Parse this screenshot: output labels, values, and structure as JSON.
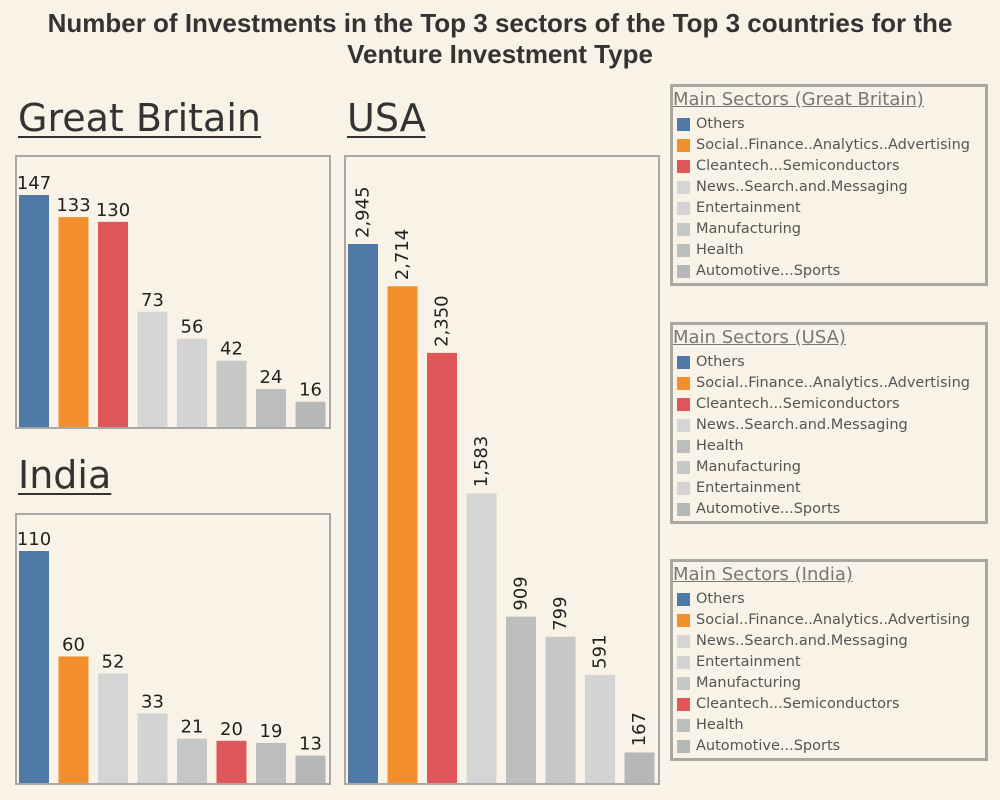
{
  "title_line1": "Number of Investments in the Top 3 sectors of the Top 3 countries for the",
  "title_line2": "Venture Investment Type",
  "colors": {
    "Others": "#4e79a7",
    "Social..Finance..Analytics..Advertising": "#f28e2b",
    "Cleantech...Semiconductors": "#e15759",
    "News..Search.and.Messaging": "#d5d5d5",
    "Entertainment": "#d3d3d3",
    "Manufacturing": "#c6c7c7",
    "Health": "#bcbdbd",
    "Automotive...Sports": "#b6b8b8"
  },
  "chart_data": [
    {
      "type": "bar",
      "title": "Great Britain",
      "categories": [
        "Others",
        "Social..Finance..Analytics..Advertising",
        "Cleantech...Semiconductors",
        "News..Search.and.Messaging",
        "Entertainment",
        "Manufacturing",
        "Health",
        "Automotive...Sports"
      ],
      "values": [
        147,
        133,
        130,
        73,
        56,
        42,
        24,
        16
      ],
      "value_labels": [
        "147",
        "133",
        "130",
        "73",
        "56",
        "42",
        "24",
        "16"
      ],
      "ylim": [
        0,
        147
      ],
      "label_orientation": "horizontal"
    },
    {
      "type": "bar",
      "title": "India",
      "categories": [
        "Others",
        "Social..Finance..Analytics..Advertising",
        "News..Search.and.Messaging",
        "Entertainment",
        "Manufacturing",
        "Cleantech...Semiconductors",
        "Health",
        "Automotive...Sports"
      ],
      "values": [
        110,
        60,
        52,
        33,
        21,
        20,
        19,
        13
      ],
      "value_labels": [
        "110",
        "60",
        "52",
        "33",
        "21",
        "20",
        "19",
        "13"
      ],
      "ylim": [
        0,
        110
      ],
      "label_orientation": "horizontal"
    },
    {
      "type": "bar",
      "title": "USA",
      "categories": [
        "Others",
        "Social..Finance..Analytics..Advertising",
        "Cleantech...Semiconductors",
        "News..Search.and.Messaging",
        "Health",
        "Manufacturing",
        "Entertainment",
        "Automotive...Sports"
      ],
      "values": [
        2945,
        2714,
        2350,
        1583,
        909,
        799,
        591,
        167
      ],
      "value_labels": [
        "2,945",
        "2,714",
        "2,350",
        "1,583",
        "909",
        "799",
        "591",
        "167"
      ],
      "ylim": [
        0,
        2945
      ],
      "label_orientation": "vertical"
    }
  ],
  "legends": [
    {
      "title": "Main Sectors (Great Britain)",
      "items": [
        "Others",
        "Social..Finance..Analytics..Advertising",
        "Cleantech...Semiconductors",
        "News..Search.and.Messaging",
        "Entertainment",
        "Manufacturing",
        "Health",
        "Automotive...Sports"
      ]
    },
    {
      "title": "Main Sectors (USA)",
      "items": [
        "Others",
        "Social..Finance..Analytics..Advertising",
        "Cleantech...Semiconductors",
        "News..Search.and.Messaging",
        "Health",
        "Manufacturing",
        "Entertainment",
        "Automotive...Sports"
      ]
    },
    {
      "title": "Main Sectors (India)",
      "items": [
        "Others",
        "Social..Finance..Analytics..Advertising",
        "News..Search.and.Messaging",
        "Entertainment",
        "Manufacturing",
        "Cleantech...Semiconductors",
        "Health",
        "Automotive...Sports"
      ]
    }
  ]
}
